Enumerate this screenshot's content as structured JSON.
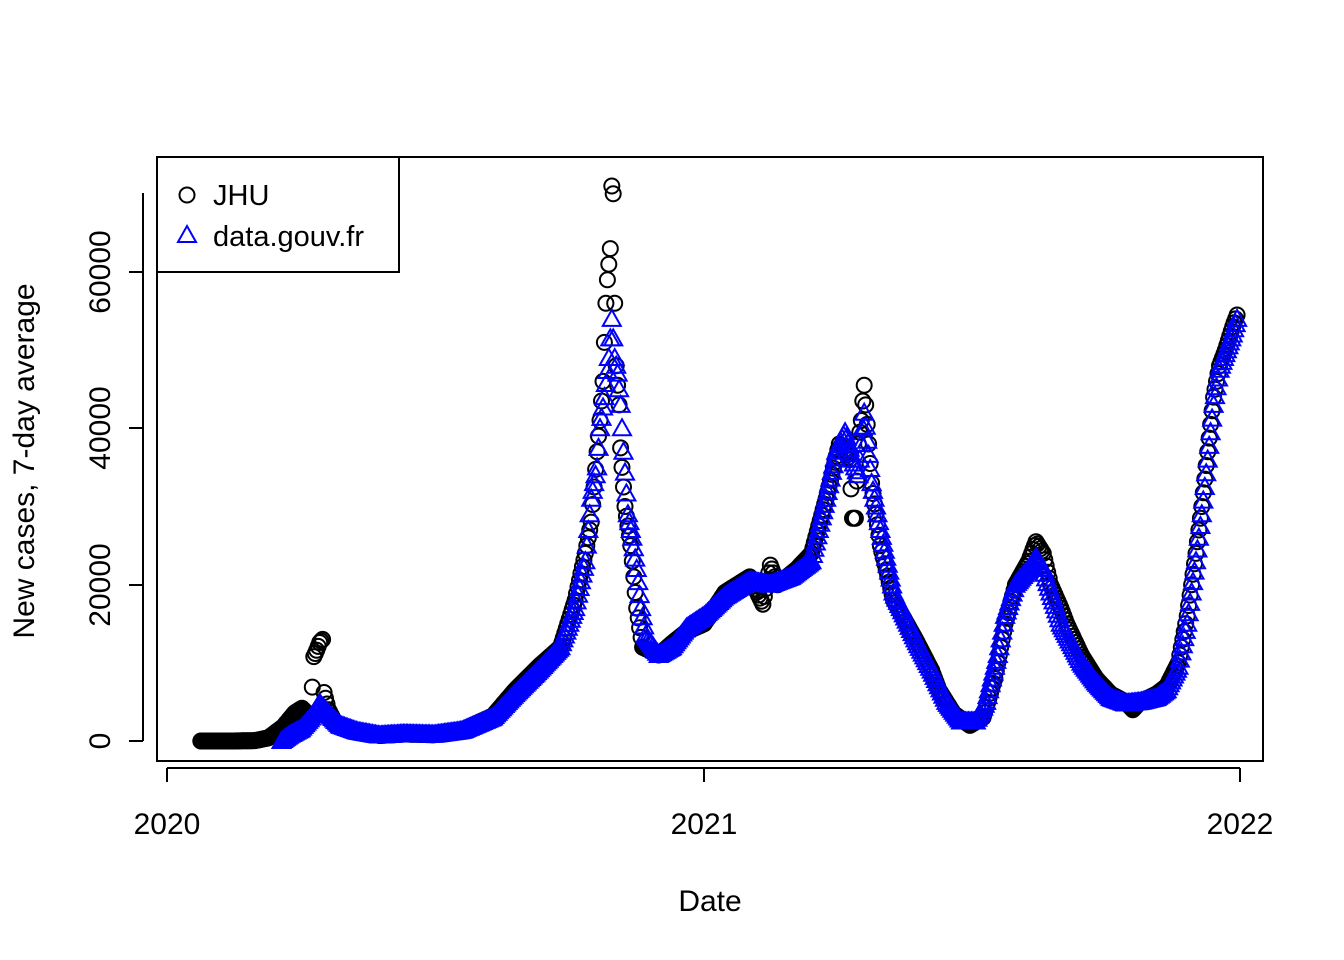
{
  "chart_data": {
    "type": "scatter",
    "title": "",
    "xlabel": "Date",
    "ylabel": "New cases, 7-day average",
    "x_ticks": [
      "2020-01-01",
      "2021-01-01",
      "2022-01-01"
    ],
    "x_tick_labels": [
      "2020",
      "2021",
      "2022"
    ],
    "y_ticks": [
      0,
      20000,
      40000,
      60000
    ],
    "y_tick_labels": [
      "0",
      "20000",
      "40000",
      "60000"
    ],
    "xlim": [
      "2019-12-25",
      "2022-01-05"
    ],
    "ylim": [
      -2800,
      75000
    ],
    "grid": false,
    "legend_position": "top-left",
    "series": [
      {
        "name": "JHU",
        "marker": "open-circle",
        "color": "#000000",
        "points": [
          [
            "2020-01-24",
            0
          ],
          [
            "2020-02-15",
            0
          ],
          [
            "2020-03-01",
            50
          ],
          [
            "2020-03-10",
            400
          ],
          [
            "2020-03-20",
            1800
          ],
          [
            "2020-03-28",
            3600
          ],
          [
            "2020-04-02",
            4200
          ],
          [
            "2020-04-08",
            3000
          ],
          [
            "2020-04-10",
            10800
          ],
          [
            "2020-04-12",
            11600
          ],
          [
            "2020-04-14",
            12600
          ],
          [
            "2020-04-16",
            13000
          ],
          [
            "2020-04-17",
            6200
          ],
          [
            "2020-04-20",
            4000
          ],
          [
            "2020-04-25",
            2200
          ],
          [
            "2020-05-10",
            1200
          ],
          [
            "2020-05-25",
            700
          ],
          [
            "2020-06-10",
            900
          ],
          [
            "2020-07-01",
            800
          ],
          [
            "2020-07-20",
            1400
          ],
          [
            "2020-08-10",
            3200
          ],
          [
            "2020-08-25",
            6500
          ],
          [
            "2020-09-10",
            9500
          ],
          [
            "2020-09-25",
            12000
          ],
          [
            "2020-10-05",
            18000
          ],
          [
            "2020-10-12",
            24000
          ],
          [
            "2020-10-16",
            28000
          ],
          [
            "2020-10-20",
            37000
          ],
          [
            "2020-10-22",
            41000
          ],
          [
            "2020-10-24",
            46000
          ],
          [
            "2020-10-25",
            51000
          ],
          [
            "2020-10-26",
            56000
          ],
          [
            "2020-10-27",
            59000
          ],
          [
            "2020-10-28",
            61000
          ],
          [
            "2020-10-29",
            63000
          ],
          [
            "2020-10-30",
            71000
          ],
          [
            "2020-10-31",
            70000
          ],
          [
            "2020-11-01",
            56000
          ],
          [
            "2020-11-02",
            48000
          ],
          [
            "2020-11-04",
            43000
          ],
          [
            "2020-11-05",
            37500
          ],
          [
            "2020-11-08",
            30000
          ],
          [
            "2020-11-12",
            25000
          ],
          [
            "2020-11-16",
            17000
          ],
          [
            "2020-11-20",
            12000
          ],
          [
            "2020-12-01",
            11000
          ],
          [
            "2020-12-10",
            12500
          ],
          [
            "2020-12-20",
            14000
          ],
          [
            "2021-01-01",
            15000
          ],
          [
            "2021-01-15",
            19000
          ],
          [
            "2021-02-01",
            21000
          ],
          [
            "2021-02-10",
            17500
          ],
          [
            "2021-02-15",
            22500
          ],
          [
            "2021-02-20",
            20000
          ],
          [
            "2021-03-05",
            22000
          ],
          [
            "2021-03-15",
            24000
          ],
          [
            "2021-03-25",
            31000
          ],
          [
            "2021-04-03",
            38000
          ],
          [
            "2021-04-10",
            36000
          ],
          [
            "2021-04-12",
            28500
          ],
          [
            "2021-04-14",
            28500
          ],
          [
            "2021-04-16",
            38000
          ],
          [
            "2021-04-18",
            41000
          ],
          [
            "2021-04-19",
            43500
          ],
          [
            "2021-04-20",
            45500
          ],
          [
            "2021-04-25",
            33000
          ],
          [
            "2021-05-01",
            25000
          ],
          [
            "2021-05-10",
            18000
          ],
          [
            "2021-05-25",
            13000
          ],
          [
            "2021-06-05",
            9000
          ],
          [
            "2021-06-10",
            6500
          ],
          [
            "2021-06-20",
            3500
          ],
          [
            "2021-07-01",
            2000
          ],
          [
            "2021-07-10",
            3000
          ],
          [
            "2021-07-18",
            8000
          ],
          [
            "2021-07-25",
            15000
          ],
          [
            "2021-08-01",
            20000
          ],
          [
            "2021-08-10",
            23000
          ],
          [
            "2021-08-15",
            25500
          ],
          [
            "2021-08-20",
            24000
          ],
          [
            "2021-08-25",
            20000
          ],
          [
            "2021-09-01",
            17000
          ],
          [
            "2021-09-05",
            15000
          ],
          [
            "2021-09-15",
            11000
          ],
          [
            "2021-09-25",
            8000
          ],
          [
            "2021-10-05",
            6000
          ],
          [
            "2021-10-15",
            5000
          ],
          [
            "2021-10-20",
            4000
          ],
          [
            "2021-10-25",
            5000
          ],
          [
            "2021-11-05",
            6000
          ],
          [
            "2021-11-12",
            7000
          ],
          [
            "2021-11-20",
            10000
          ],
          [
            "2021-11-26",
            16000
          ],
          [
            "2021-12-02",
            24000
          ],
          [
            "2021-12-06",
            30000
          ],
          [
            "2021-12-10",
            37000
          ],
          [
            "2021-12-14",
            44000
          ],
          [
            "2021-12-18",
            48000
          ],
          [
            "2021-12-22",
            50000
          ],
          [
            "2021-12-27",
            53000
          ],
          [
            "2021-12-30",
            54500
          ]
        ]
      },
      {
        "name": "data.gouv.fr",
        "marker": "open-triangle",
        "color": "#0000ff",
        "points": [
          [
            "2020-03-19",
            0
          ],
          [
            "2020-03-25",
            800
          ],
          [
            "2020-04-01",
            1500
          ],
          [
            "2020-04-08",
            3000
          ],
          [
            "2020-04-14",
            4800
          ],
          [
            "2020-04-20",
            3500
          ],
          [
            "2020-04-28",
            2000
          ],
          [
            "2020-05-10",
            1200
          ],
          [
            "2020-05-25",
            700
          ],
          [
            "2020-06-10",
            900
          ],
          [
            "2020-07-01",
            800
          ],
          [
            "2020-07-20",
            1300
          ],
          [
            "2020-08-10",
            3000
          ],
          [
            "2020-08-25",
            6000
          ],
          [
            "2020-09-10",
            9000
          ],
          [
            "2020-09-25",
            12000
          ],
          [
            "2020-10-05",
            17000
          ],
          [
            "2020-10-12",
            23000
          ],
          [
            "2020-10-16",
            31000
          ],
          [
            "2020-10-20",
            35000
          ],
          [
            "2020-10-22",
            40000
          ],
          [
            "2020-10-25",
            44000
          ],
          [
            "2020-10-28",
            49000
          ],
          [
            "2020-10-30",
            54000
          ],
          [
            "2020-11-01",
            49000
          ],
          [
            "2020-11-03",
            47000
          ],
          [
            "2020-11-05",
            43000
          ],
          [
            "2020-11-07",
            37000
          ],
          [
            "2020-11-10",
            29000
          ],
          [
            "2020-11-13",
            26000
          ],
          [
            "2020-11-16",
            22000
          ],
          [
            "2020-11-19",
            17000
          ],
          [
            "2020-11-22",
            13500
          ],
          [
            "2020-12-01",
            11000
          ],
          [
            "2020-12-10",
            12000
          ],
          [
            "2020-12-20",
            14500
          ],
          [
            "2021-01-01",
            16000
          ],
          [
            "2021-01-15",
            18500
          ],
          [
            "2021-02-01",
            20500
          ],
          [
            "2021-02-15",
            20000
          ],
          [
            "2021-03-01",
            21000
          ],
          [
            "2021-03-15",
            23000
          ],
          [
            "2021-03-25",
            31000
          ],
          [
            "2021-04-01",
            37000
          ],
          [
            "2021-04-07",
            39500
          ],
          [
            "2021-04-12",
            36000
          ],
          [
            "2021-04-16",
            34000
          ],
          [
            "2021-04-18",
            38000
          ],
          [
            "2021-04-20",
            42000
          ],
          [
            "2021-04-25",
            33000
          ],
          [
            "2021-05-01",
            27000
          ],
          [
            "2021-05-10",
            19000
          ],
          [
            "2021-05-25",
            13000
          ],
          [
            "2021-06-05",
            9000
          ],
          [
            "2021-06-15",
            5000
          ],
          [
            "2021-06-25",
            2500
          ],
          [
            "2021-07-05",
            2500
          ],
          [
            "2021-07-12",
            5000
          ],
          [
            "2021-07-20",
            11000
          ],
          [
            "2021-07-25",
            16000
          ],
          [
            "2021-08-01",
            20000
          ],
          [
            "2021-08-10",
            22000
          ],
          [
            "2021-08-15",
            23500
          ],
          [
            "2021-08-20",
            22000
          ],
          [
            "2021-08-25",
            19000
          ],
          [
            "2021-09-01",
            15000
          ],
          [
            "2021-09-15",
            10000
          ],
          [
            "2021-09-25",
            7500
          ],
          [
            "2021-10-05",
            5500
          ],
          [
            "2021-10-15",
            4800
          ],
          [
            "2021-10-25",
            5000
          ],
          [
            "2021-11-05",
            5500
          ],
          [
            "2021-11-12",
            6500
          ],
          [
            "2021-11-20",
            9500
          ],
          [
            "2021-11-26",
            15000
          ],
          [
            "2021-12-02",
            23000
          ],
          [
            "2021-12-06",
            29000
          ],
          [
            "2021-12-10",
            36000
          ],
          [
            "2021-12-14",
            43000
          ],
          [
            "2021-12-18",
            47500
          ],
          [
            "2021-12-22",
            49500
          ],
          [
            "2021-12-27",
            52000
          ],
          [
            "2021-12-30",
            54000
          ]
        ]
      }
    ]
  }
}
